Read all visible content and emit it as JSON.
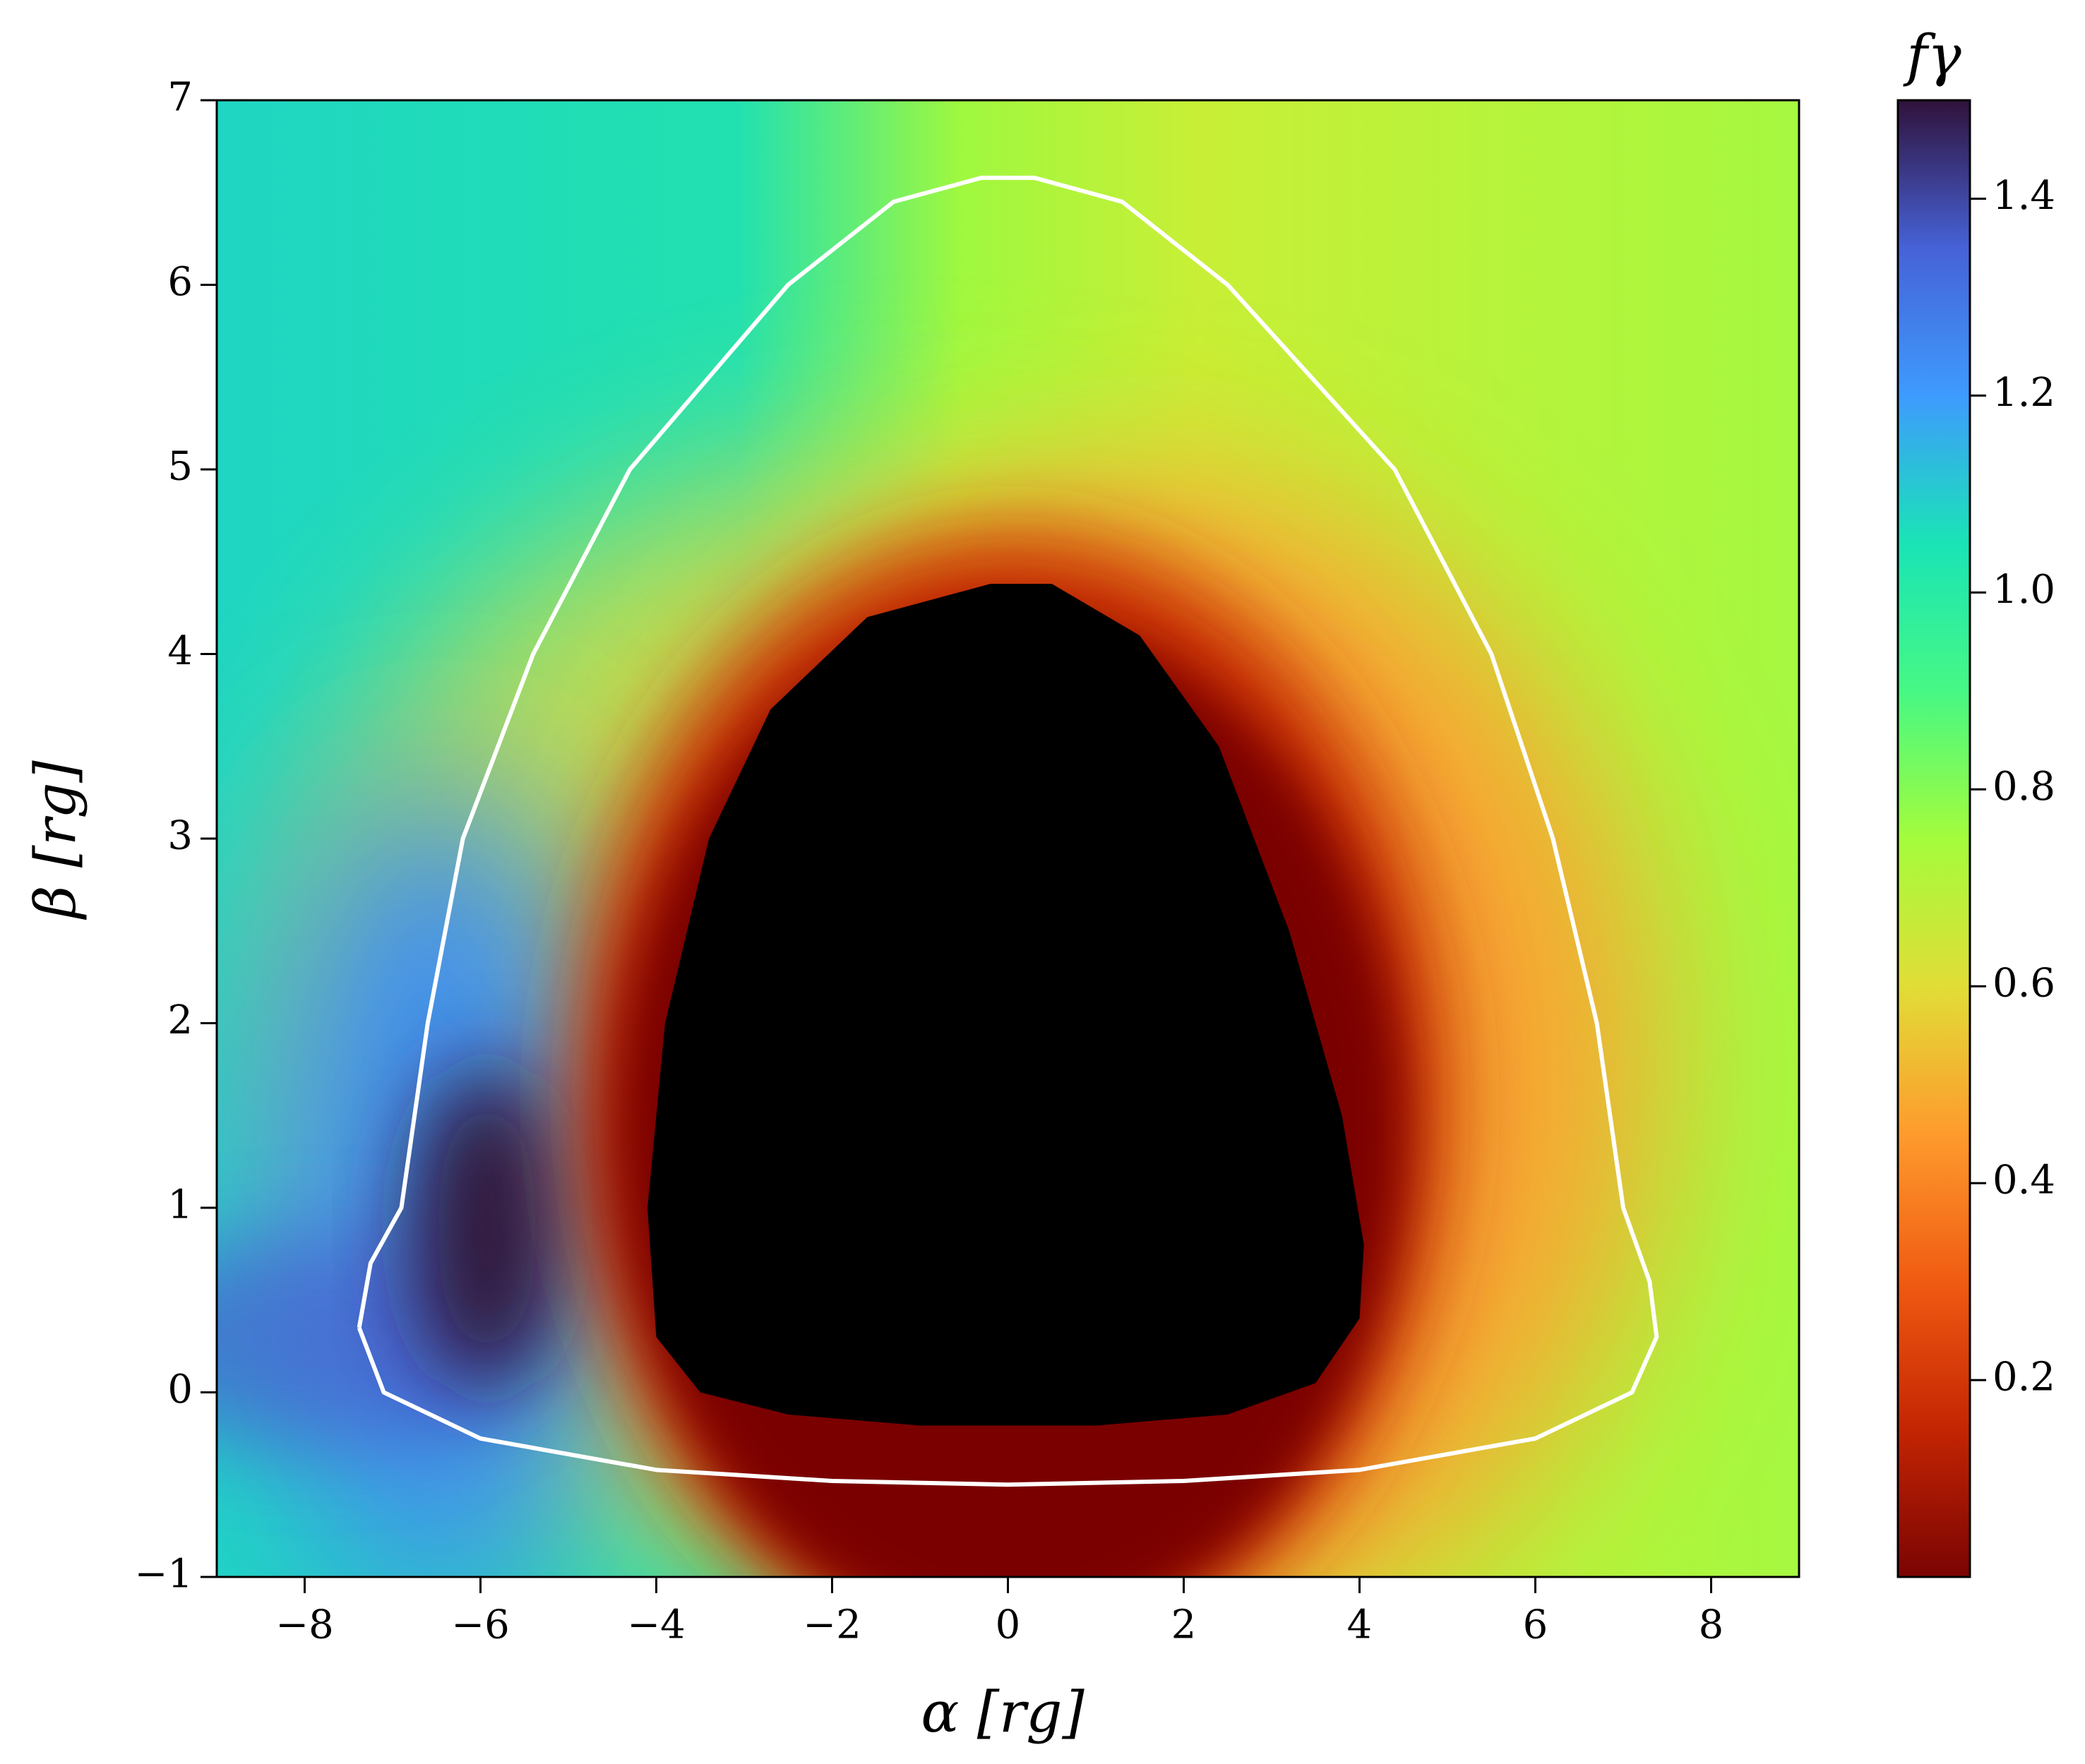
{
  "chart_data": {
    "type": "heatmap",
    "xlabel": "α [rg]",
    "ylabel": "β [rg]",
    "colorbar_label": "fγ",
    "xlim": [
      -9,
      9
    ],
    "ylim": [
      -1,
      7
    ],
    "xticks": [
      {
        "value": -8,
        "label": "−8"
      },
      {
        "value": -6,
        "label": "−6"
      },
      {
        "value": -4,
        "label": "−4"
      },
      {
        "value": -2,
        "label": "−2"
      },
      0,
      2,
      4,
      6,
      8
    ],
    "yticks": [
      {
        "value": -1,
        "label": "−1"
      },
      0,
      1,
      2,
      3,
      4,
      5,
      6,
      7
    ],
    "clim": [
      0,
      1.5
    ],
    "cticks": [
      0.2,
      0.4,
      0.6,
      0.8,
      {
        "value": 1,
        "label": "1.0"
      },
      1.2,
      1.4
    ],
    "colormap": [
      "#7a0403",
      "#c42503",
      "#f05b12",
      "#fe9b2d",
      "#e1dd37",
      "#a4fc3c",
      "#46f884",
      "#1ae4b6",
      "#3e9bfe",
      "#4662d7",
      "#30123b"
    ],
    "contour": {
      "color": "#ffffff",
      "x": [
        -7.38,
        -7.25,
        -6.9,
        -6.6,
        -6.2,
        -5.4,
        -4.3,
        -2.5,
        -1.3,
        -0.3,
        0.3,
        1.3,
        2.5,
        4.4,
        5.5,
        6.2,
        6.7,
        7.0,
        7.3,
        7.38,
        7.1,
        6.0,
        4.0,
        2.0,
        0,
        -2,
        -4,
        -6,
        -7.1,
        -7.38
      ],
      "y": [
        0.35,
        0.7,
        1.0,
        2.0,
        3.0,
        4.0,
        5.0,
        6.0,
        6.45,
        6.58,
        6.58,
        6.45,
        6.0,
        5.0,
        4.0,
        3.0,
        2.0,
        1.0,
        0.6,
        0.3,
        0.0,
        -0.25,
        -0.42,
        -0.48,
        -0.5,
        -0.48,
        -0.42,
        -0.25,
        0.0,
        0.35
      ]
    },
    "shadow": {
      "color": "#000000",
      "x": [
        -0.2,
        0.5,
        1.5,
        2.4,
        3.2,
        3.8,
        4.05,
        4.0,
        3.5,
        2.5,
        1.0,
        -1,
        -2.5,
        -3.5,
        -4.0,
        -4.1,
        -3.9,
        -3.4,
        -2.7,
        -1.6,
        -0.2
      ],
      "y": [
        4.38,
        4.38,
        4.1,
        3.5,
        2.5,
        1.5,
        0.8,
        0.4,
        0.05,
        -0.12,
        -0.18,
        -0.18,
        -0.12,
        0.0,
        0.3,
        1.0,
        2.0,
        3.0,
        3.7,
        4.2,
        4.38
      ]
    }
  }
}
